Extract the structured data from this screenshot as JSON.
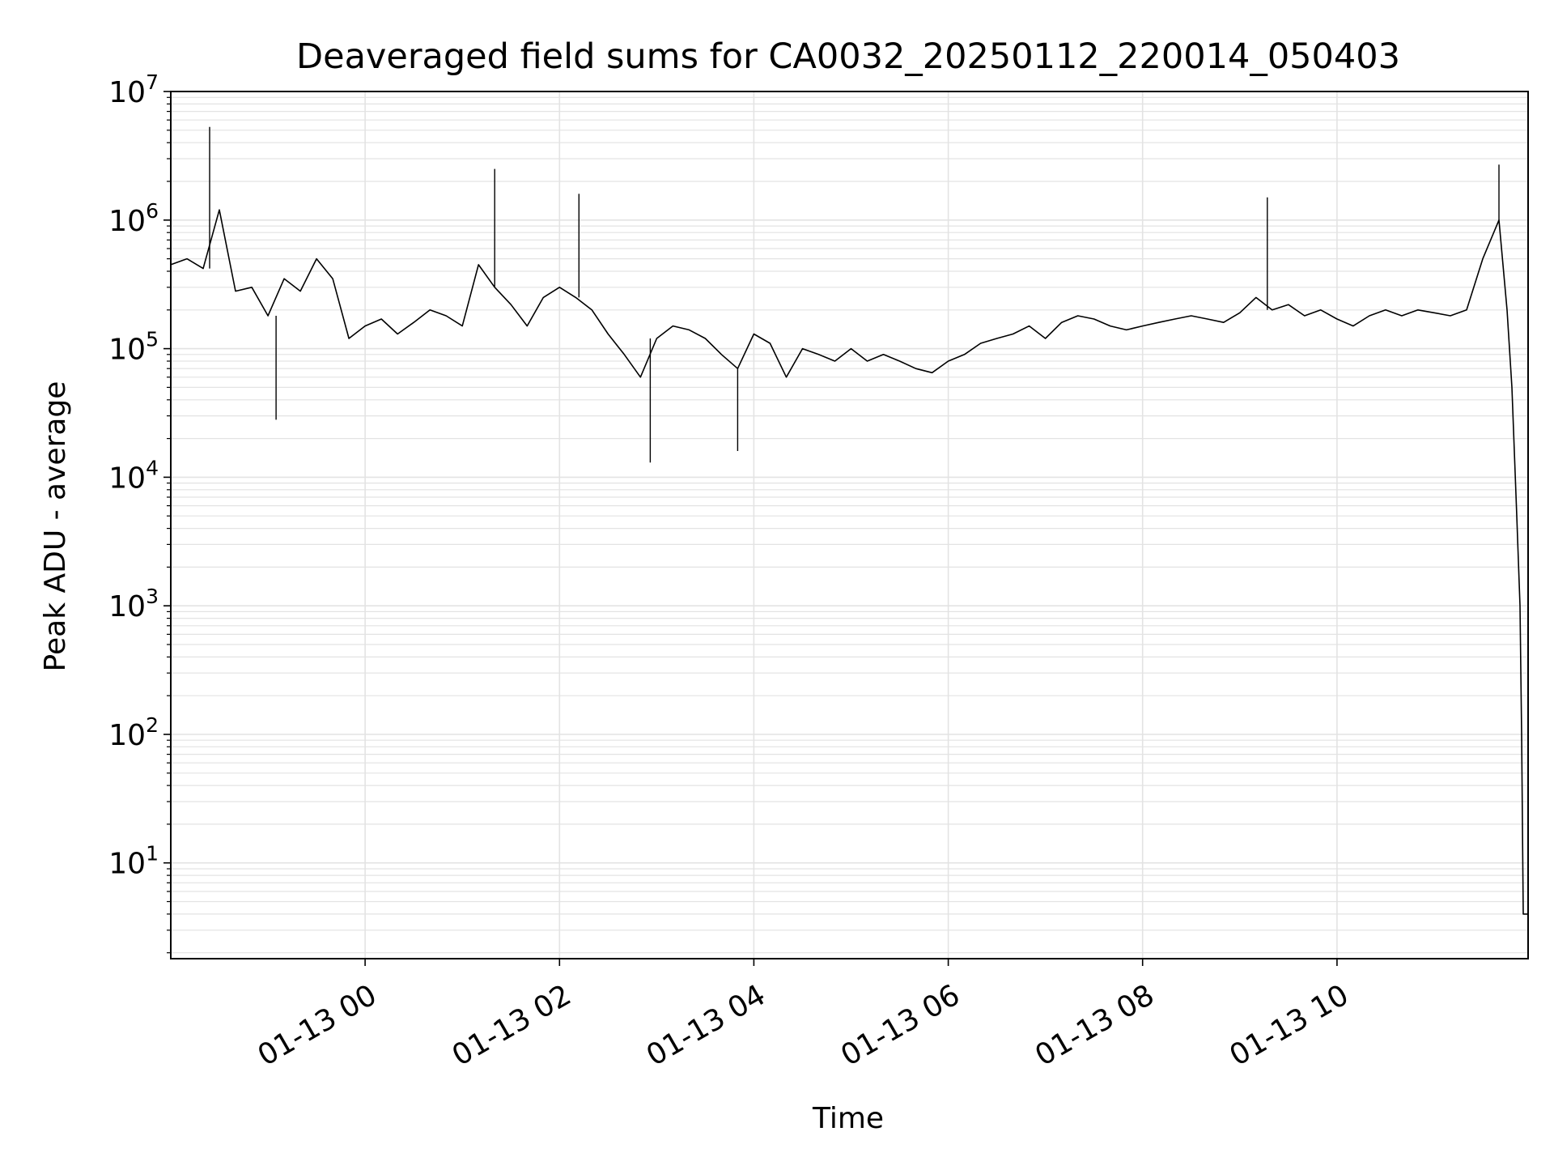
{
  "chart_data": {
    "type": "line",
    "title": "Deaveraged field sums for CA0032_20250112_220014_050403",
    "xlabel": "Time",
    "ylabel": "Peak ADU - average",
    "yscale": "log",
    "ylim": [
      1.8,
      10000000
    ],
    "xlim": [
      "2025-01-12T22:00:00",
      "2025-01-13T11:58:00"
    ],
    "grid": true,
    "legend": "none",
    "x_ticks": [
      {
        "value": "2025-01-13T00:00:00",
        "label": "01-13 00"
      },
      {
        "value": "2025-01-13T02:00:00",
        "label": "01-13 02"
      },
      {
        "value": "2025-01-13T04:00:00",
        "label": "01-13 04"
      },
      {
        "value": "2025-01-13T06:00:00",
        "label": "01-13 06"
      },
      {
        "value": "2025-01-13T08:00:00",
        "label": "01-13 08"
      },
      {
        "value": "2025-01-13T10:00:00",
        "label": "01-13 10"
      }
    ],
    "y_ticks": [
      {
        "value": 10,
        "base": "10",
        "exp": "1"
      },
      {
        "value": 100,
        "base": "10",
        "exp": "2"
      },
      {
        "value": 1000,
        "base": "10",
        "exp": "3"
      },
      {
        "value": 10000,
        "base": "10",
        "exp": "4"
      },
      {
        "value": 100000,
        "base": "10",
        "exp": "5"
      },
      {
        "value": 1000000,
        "base": "10",
        "exp": "6"
      },
      {
        "value": 10000000,
        "base": "10",
        "exp": "7"
      }
    ],
    "line_color": "#000000",
    "grid_color": "#e3e3e3",
    "series": [
      {
        "x": [
          "2025-01-12T22:00",
          "2025-01-12T22:10",
          "2025-01-12T22:20",
          "2025-01-12T22:30",
          "2025-01-12T22:40",
          "2025-01-12T22:50",
          "2025-01-12T23:00",
          "2025-01-12T23:10",
          "2025-01-12T23:20",
          "2025-01-12T23:30",
          "2025-01-12T23:40",
          "2025-01-12T23:50",
          "2025-01-13T00:00",
          "2025-01-13T00:10",
          "2025-01-13T00:20",
          "2025-01-13T00:30",
          "2025-01-13T00:40",
          "2025-01-13T00:50",
          "2025-01-13T01:00",
          "2025-01-13T01:10",
          "2025-01-13T01:20",
          "2025-01-13T01:30",
          "2025-01-13T01:40",
          "2025-01-13T01:50",
          "2025-01-13T02:00",
          "2025-01-13T02:10",
          "2025-01-13T02:20",
          "2025-01-13T02:30",
          "2025-01-13T02:40",
          "2025-01-13T02:50",
          "2025-01-13T03:00",
          "2025-01-13T03:10",
          "2025-01-13T03:20",
          "2025-01-13T03:30",
          "2025-01-13T03:40",
          "2025-01-13T03:50",
          "2025-01-13T04:00",
          "2025-01-13T04:10",
          "2025-01-13T04:20",
          "2025-01-13T04:30",
          "2025-01-13T04:40",
          "2025-01-13T04:50",
          "2025-01-13T05:00",
          "2025-01-13T05:10",
          "2025-01-13T05:20",
          "2025-01-13T05:30",
          "2025-01-13T05:40",
          "2025-01-13T05:50",
          "2025-01-13T06:00",
          "2025-01-13T06:10",
          "2025-01-13T06:20",
          "2025-01-13T06:30",
          "2025-01-13T06:40",
          "2025-01-13T06:50",
          "2025-01-13T07:00",
          "2025-01-13T07:10",
          "2025-01-13T07:20",
          "2025-01-13T07:30",
          "2025-01-13T07:40",
          "2025-01-13T07:50",
          "2025-01-13T08:00",
          "2025-01-13T08:10",
          "2025-01-13T08:20",
          "2025-01-13T08:30",
          "2025-01-13T08:40",
          "2025-01-13T08:50",
          "2025-01-13T09:00",
          "2025-01-13T09:10",
          "2025-01-13T09:20",
          "2025-01-13T09:30",
          "2025-01-13T09:40",
          "2025-01-13T09:50",
          "2025-01-13T10:00",
          "2025-01-13T10:10",
          "2025-01-13T10:20",
          "2025-01-13T10:30",
          "2025-01-13T10:40",
          "2025-01-13T10:50",
          "2025-01-13T11:00",
          "2025-01-13T11:10",
          "2025-01-13T11:20",
          "2025-01-13T11:30",
          "2025-01-13T11:40",
          "2025-01-13T11:45",
          "2025-01-13T11:48",
          "2025-01-13T11:51",
          "2025-01-13T11:53",
          "2025-01-13T11:54",
          "2025-01-13T11:55",
          "2025-01-13T11:58"
        ],
        "y": [
          450000,
          500000,
          420000,
          1200000,
          280000,
          300000,
          180000,
          350000,
          280000,
          500000,
          350000,
          120000,
          150000,
          170000,
          130000,
          160000,
          200000,
          180000,
          150000,
          450000,
          300000,
          220000,
          150000,
          250000,
          300000,
          250000,
          200000,
          130000,
          90000,
          60000,
          120000,
          150000,
          140000,
          120000,
          90000,
          70000,
          130000,
          110000,
          60000,
          100000,
          90000,
          80000,
          100000,
          80000,
          90000,
          80000,
          70000,
          65000,
          80000,
          90000,
          110000,
          120000,
          130000,
          150000,
          120000,
          160000,
          180000,
          170000,
          150000,
          140000,
          150000,
          160000,
          170000,
          180000,
          170000,
          160000,
          190000,
          250000,
          200000,
          220000,
          180000,
          200000,
          170000,
          150000,
          180000,
          200000,
          180000,
          200000,
          190000,
          180000,
          200000,
          500000,
          1000000,
          200000,
          50000,
          5000,
          1000,
          100,
          4,
          4
        ]
      }
    ],
    "extremes": [
      {
        "x": "2025-01-12T22:24",
        "y": 5300000
      },
      {
        "x": "2025-01-13T01:20",
        "y": 2500000
      },
      {
        "x": "2025-01-13T02:12",
        "y": 1600000
      },
      {
        "x": "2025-01-13T02:56",
        "y": 13000
      },
      {
        "x": "2025-01-13T03:50",
        "y": 16000
      },
      {
        "x": "2025-01-13T09:17",
        "y": 1500000
      },
      {
        "x": "2025-01-13T11:40",
        "y": 2700000
      },
      {
        "x": "2025-01-12T23:05",
        "y": 28000
      }
    ]
  }
}
